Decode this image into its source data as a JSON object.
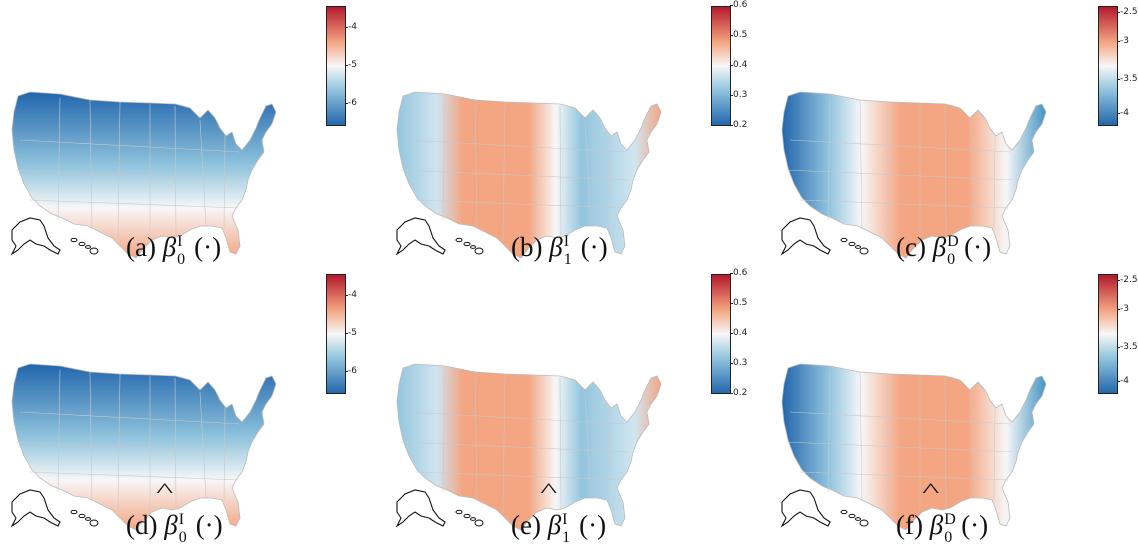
{
  "panels": [
    {
      "id": "a",
      "letter": "(a)",
      "symbol": "β",
      "sub": "0",
      "sup": "I",
      "hat": false,
      "arg": "(·)",
      "ticks": [
        "-4",
        "-5",
        "-6"
      ],
      "pattern": "ns"
    },
    {
      "id": "b",
      "letter": "(b)",
      "symbol": "β",
      "sub": "1",
      "sup": "I",
      "hat": false,
      "arg": "(·)",
      "ticks": [
        "0.6",
        "0.5",
        "0.4",
        "0.3",
        "0.2"
      ],
      "pattern": "center"
    },
    {
      "id": "c",
      "letter": "(c)",
      "symbol": "β",
      "sub": "0",
      "sup": "D",
      "hat": false,
      "arg": "(·)",
      "ticks": [
        "-2.5",
        "-3",
        "-3.5",
        "-4"
      ],
      "pattern": "westeast"
    },
    {
      "id": "d",
      "letter": "(d)",
      "symbol": "β",
      "sub": "0",
      "sup": "I",
      "hat": true,
      "arg": "(·)",
      "ticks": [
        "-4",
        "-5",
        "-6"
      ],
      "pattern": "ns"
    },
    {
      "id": "e",
      "letter": "(e)",
      "symbol": "β",
      "sub": "1",
      "sup": "I",
      "hat": true,
      "arg": "(·)",
      "ticks": [
        "0.6",
        "0.5",
        "0.4",
        "0.3",
        "0.2"
      ],
      "pattern": "center"
    },
    {
      "id": "f",
      "letter": "(f)",
      "symbol": "β",
      "sub": "0",
      "sup": "D",
      "hat": true,
      "arg": "(·)",
      "ticks": [
        "-2.5",
        "-3",
        "-3.5",
        "-4"
      ],
      "pattern": "westeast"
    }
  ],
  "colors": {
    "red": "#b2182b",
    "white": "#f7f7f7",
    "blue": "#2166ac"
  }
}
